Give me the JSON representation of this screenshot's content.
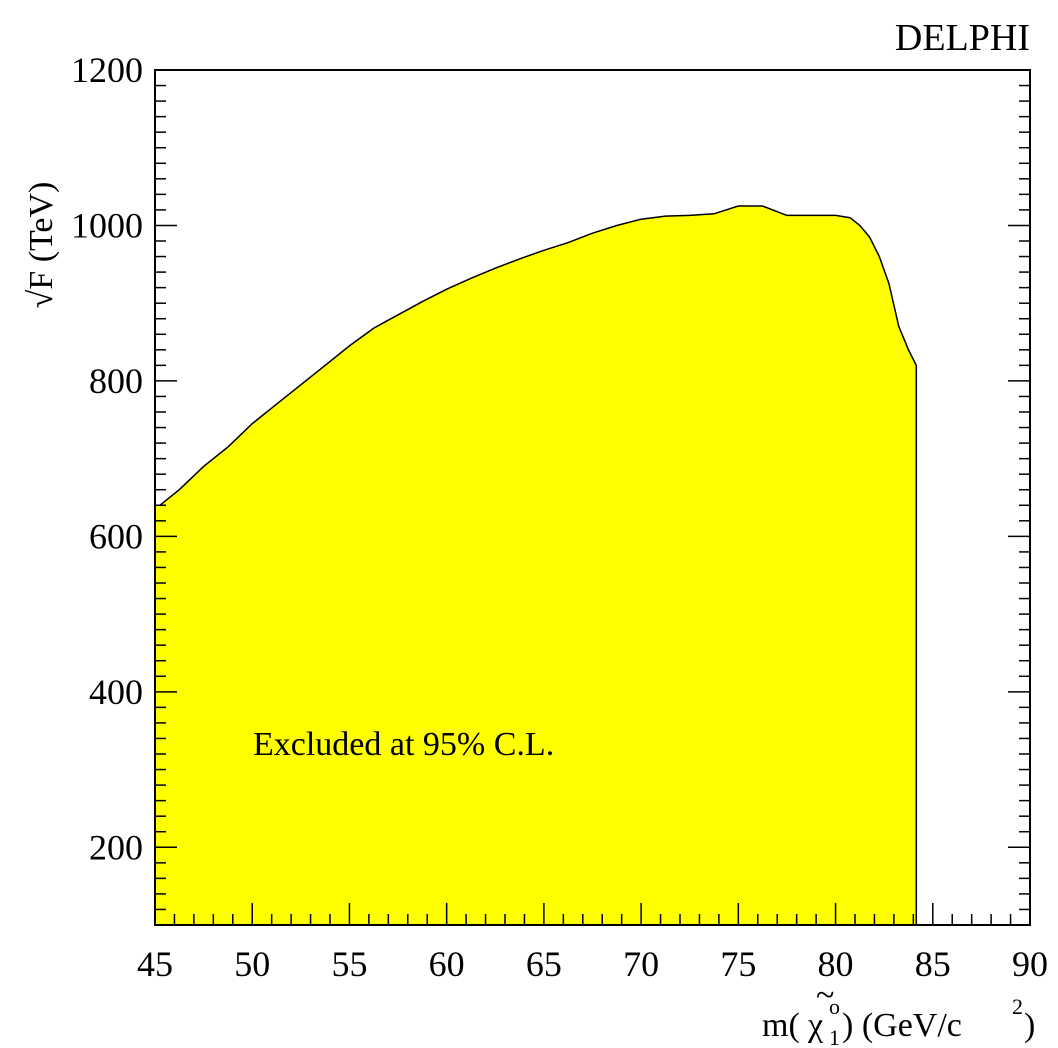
{
  "chart_data": {
    "type": "area",
    "experiment_label": "DELPHI",
    "annotation": "Excluded at 95% C.L.",
    "xlabel_prefix": "m(",
    "xlabel_tilde": "~",
    "xlabel_symbol": "χ",
    "xlabel_sup": "o",
    "xlabel_sub": "1",
    "xlabel_suffix": ") (GeV/c",
    "xlabel_power": "2",
    "xlabel_close": ")",
    "ylabel": "√F (TeV)",
    "xlim": [
      45,
      90
    ],
    "ylim": [
      100,
      1200
    ],
    "x_ticks": [
      "45",
      "50",
      "55",
      "60",
      "65",
      "70",
      "75",
      "80",
      "85",
      "90"
    ],
    "y_ticks": [
      "200",
      "400",
      "600",
      "800",
      "1000",
      "1200"
    ],
    "fill_color": "#ffff00",
    "grid": false,
    "legend": "none",
    "boundary": {
      "x": [
        45,
        45.25,
        46.25,
        47.5,
        48.75,
        50,
        51.25,
        52.5,
        53.75,
        55,
        56.25,
        57.5,
        58.75,
        60,
        61.25,
        62.5,
        63.75,
        65,
        66.25,
        67.5,
        68.75,
        70,
        71.25,
        72.5,
        73.75,
        75,
        76.25,
        77.5,
        78.75,
        80,
        80.75,
        81.25,
        81.75,
        82.25,
        82.75,
        83.25,
        83.75,
        84.15,
        84.15,
        45
      ],
      "y": [
        640,
        640,
        660,
        690,
        715,
        745,
        770,
        795,
        820,
        845,
        868,
        885,
        902,
        918,
        932,
        945,
        957,
        968,
        978,
        990,
        1000,
        1008,
        1012,
        1013,
        1015,
        1025,
        1025,
        1013,
        1013,
        1013,
        1010,
        1000,
        985,
        960,
        925,
        870,
        840,
        820,
        100,
        100
      ]
    }
  }
}
